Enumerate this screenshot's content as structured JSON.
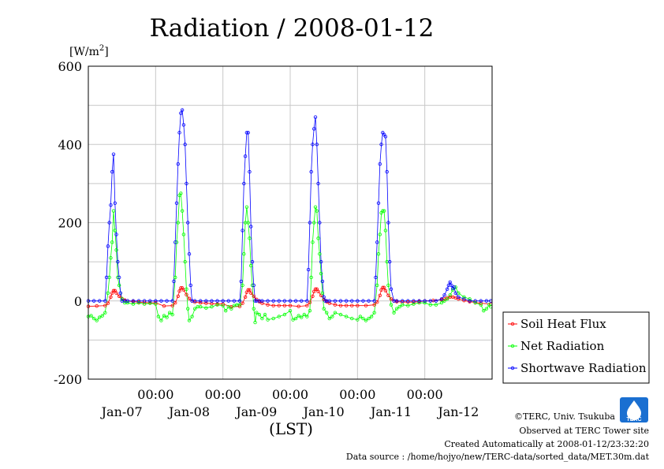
{
  "chart_data": {
    "type": "line",
    "title": "Radiation / 2008-01-12",
    "ylabel_unit": "[W/m",
    "ylabel_unit_sup": "2",
    "ylabel_unit_close": "]",
    "xlabel": "(LST)",
    "ylim": [
      -200,
      600
    ],
    "yticks": [
      "600",
      "400",
      "200",
      "0",
      "-200"
    ],
    "ytick_values": [
      600,
      400,
      200,
      0,
      -200
    ],
    "xticks_top": [
      "00:00",
      "00:00",
      "00:00",
      "00:00",
      "00:00"
    ],
    "xticks_bottom": [
      "Jan-07",
      "Jan-08",
      "Jan-09",
      "Jan-10",
      "Jan-11",
      "Jan-12"
    ],
    "grid": true,
    "legend_position": "right",
    "series": [
      {
        "name": "Soil Heat Flux",
        "color": "#ff0000",
        "hours": [
          0,
          3,
          6,
          7,
          8,
          8.5,
          9,
          9.5,
          10,
          11,
          12,
          13,
          14,
          16,
          18,
          20,
          22,
          24,
          27,
          30,
          31,
          32,
          32.5,
          33,
          33.5,
          34,
          35,
          36,
          37,
          38,
          40,
          42,
          44,
          46,
          48,
          51,
          54,
          55,
          56,
          56.5,
          57,
          57.5,
          58,
          59,
          60,
          61,
          62,
          64,
          66,
          68,
          70,
          72,
          75,
          78,
          79,
          80,
          80.5,
          81,
          81.5,
          82,
          83,
          84,
          85,
          86,
          88,
          90,
          92,
          94,
          96,
          99,
          102,
          103,
          104,
          104.5,
          105,
          105.5,
          106,
          107,
          108,
          109,
          110,
          112,
          114,
          116,
          118,
          120,
          123,
          126,
          127,
          128,
          129,
          130,
          131,
          132,
          134,
          136,
          138,
          140,
          143.5
        ],
        "values": [
          -14,
          -13,
          -12,
          -6,
          10,
          20,
          26,
          26,
          20,
          12,
          6,
          2,
          0,
          -2,
          -3,
          -4,
          -5,
          -5,
          -13,
          -12,
          -5,
          12,
          25,
          33,
          33,
          28,
          16,
          6,
          0,
          -3,
          -5,
          -6,
          -7,
          -8,
          -8,
          -15,
          -14,
          -6,
          10,
          22,
          28,
          28,
          20,
          12,
          4,
          -2,
          -6,
          -10,
          -12,
          -12,
          -12,
          -12,
          -14,
          -12,
          -4,
          12,
          24,
          30,
          30,
          24,
          14,
          4,
          -2,
          -6,
          -10,
          -12,
          -12,
          -12,
          -12,
          -12,
          -10,
          -3,
          14,
          28,
          34,
          34,
          26,
          14,
          5,
          0,
          -2,
          -3,
          -3,
          -3,
          -2,
          0,
          1,
          3,
          5,
          8,
          10,
          10,
          8,
          5,
          1,
          -2,
          -4,
          -6,
          -8
        ]
      },
      {
        "name": "Net Radiation",
        "color": "#00ff00",
        "hours": [
          0,
          1,
          2,
          3,
          4,
          5,
          6,
          7,
          7.5,
          8,
          8.5,
          9,
          9.5,
          10,
          10.5,
          11,
          12,
          13,
          14,
          16,
          18,
          20,
          22,
          24,
          25,
          26,
          27,
          28,
          29,
          30,
          31,
          31.5,
          32,
          32.5,
          33,
          33.5,
          34,
          34.5,
          35,
          35.5,
          36,
          37,
          38,
          39,
          40,
          42,
          44,
          46,
          48,
          49,
          50,
          51,
          52,
          53,
          54,
          55,
          55.5,
          56,
          56.5,
          57,
          57.5,
          58,
          58.5,
          59,
          59.5,
          60,
          61,
          62,
          63,
          64,
          66,
          68,
          70,
          72,
          73,
          74,
          75,
          76,
          77,
          78,
          79,
          79.5,
          80,
          80.5,
          81,
          81.5,
          82,
          82.5,
          83,
          83.5,
          84,
          85,
          86,
          87,
          88,
          90,
          92,
          94,
          96,
          97,
          98,
          99,
          100,
          101,
          102,
          103,
          103.5,
          104,
          104.5,
          105,
          105.5,
          106,
          106.5,
          107,
          108,
          109,
          110,
          111,
          112,
          114,
          116,
          118,
          120,
          122,
          124,
          126,
          127,
          128,
          129,
          130,
          131,
          132,
          134,
          136,
          138,
          140,
          141,
          142,
          143,
          143.5
        ],
        "values": [
          -40,
          -38,
          -45,
          -50,
          -42,
          -38,
          -30,
          20,
          60,
          110,
          150,
          230,
          180,
          130,
          60,
          40,
          5,
          -5,
          -5,
          -8,
          -5,
          -8,
          -6,
          -8,
          -40,
          -50,
          -38,
          -42,
          -30,
          -35,
          60,
          150,
          200,
          270,
          275,
          230,
          170,
          100,
          30,
          -20,
          -50,
          -40,
          -20,
          -15,
          -15,
          -18,
          -15,
          -10,
          -12,
          -25,
          -15,
          -20,
          -12,
          -10,
          -10,
          40,
          120,
          200,
          240,
          200,
          160,
          90,
          40,
          -20,
          -55,
          -30,
          -35,
          -45,
          -35,
          -48,
          -45,
          -40,
          -35,
          -25,
          -48,
          -45,
          -38,
          -42,
          -35,
          -40,
          -25,
          60,
          150,
          200,
          240,
          230,
          160,
          120,
          70,
          20,
          -20,
          -30,
          -45,
          -40,
          -30,
          -35,
          -40,
          -45,
          -48,
          -40,
          -45,
          -50,
          -45,
          -40,
          -30,
          40,
          120,
          170,
          225,
          230,
          230,
          180,
          100,
          40,
          -10,
          -30,
          -20,
          -15,
          -10,
          -12,
          -8,
          -5,
          -5,
          -10,
          -10,
          -5,
          0,
          5,
          15,
          28,
          35,
          20,
          10,
          5,
          -5,
          -10,
          -25,
          -20,
          -10,
          -15
        ]
      },
      {
        "name": "Shortwave Radiation",
        "color": "#0000ff",
        "hours": [
          0,
          2,
          4,
          6,
          6.5,
          7,
          7.5,
          8,
          8.5,
          9,
          9.5,
          10,
          10.5,
          11,
          11.5,
          12,
          13,
          14,
          16,
          18,
          20,
          22,
          24,
          26,
          28,
          30,
          30.5,
          31,
          31.5,
          32,
          32.5,
          33,
          33.5,
          34,
          34.5,
          35,
          35.5,
          36,
          36.5,
          37,
          38,
          40,
          42,
          44,
          46,
          48,
          50,
          52,
          54,
          54.5,
          55,
          55.5,
          56,
          56.5,
          57,
          57.5,
          58,
          58.5,
          59,
          59.5,
          60,
          61,
          62,
          64,
          66,
          68,
          70,
          72,
          74,
          76,
          78,
          78.5,
          79,
          79.5,
          80,
          80.5,
          81,
          81.5,
          82,
          82.5,
          83,
          83.5,
          84,
          84.5,
          85,
          86,
          88,
          90,
          92,
          94,
          96,
          98,
          100,
          102,
          102.5,
          103,
          103.5,
          104,
          104.5,
          105,
          105.5,
          106,
          106.5,
          107,
          107.5,
          108,
          109,
          110,
          112,
          114,
          116,
          118,
          120,
          122,
          124,
          126,
          127,
          128,
          128.5,
          129,
          129.5,
          130,
          130.5,
          131,
          132,
          134,
          136,
          138,
          140,
          142,
          143.5
        ],
        "values": [
          0,
          0,
          0,
          0,
          60,
          140,
          200,
          245,
          330,
          375,
          250,
          170,
          100,
          60,
          20,
          0,
          0,
          0,
          0,
          0,
          0,
          0,
          0,
          0,
          0,
          0,
          50,
          150,
          250,
          350,
          430,
          480,
          488,
          450,
          400,
          300,
          200,
          120,
          40,
          0,
          0,
          0,
          0,
          0,
          0,
          0,
          0,
          0,
          0,
          50,
          180,
          300,
          370,
          430,
          430,
          330,
          190,
          100,
          40,
          0,
          0,
          0,
          0,
          0,
          0,
          0,
          0,
          0,
          0,
          0,
          0,
          80,
          200,
          330,
          400,
          440,
          470,
          400,
          300,
          200,
          100,
          50,
          10,
          0,
          0,
          0,
          0,
          0,
          0,
          0,
          0,
          0,
          0,
          0,
          60,
          150,
          250,
          350,
          400,
          430,
          425,
          420,
          330,
          200,
          100,
          30,
          0,
          0,
          0,
          0,
          0,
          0,
          0,
          0,
          0,
          5,
          15,
          30,
          40,
          48,
          40,
          32,
          35,
          20,
          10,
          5,
          0,
          0,
          0,
          0,
          0
        ]
      }
    ]
  },
  "footer": {
    "copyright": "©TERC, Univ. Tsukuba",
    "observed": "Observed at TERC Tower site",
    "created": "Created Automatically at 2008-01-12/23:32:20",
    "datasource": "Data source : /home/hojyo/new/TERC-data/sorted_data/MET.30m.dat",
    "logo_text": "TERC"
  }
}
